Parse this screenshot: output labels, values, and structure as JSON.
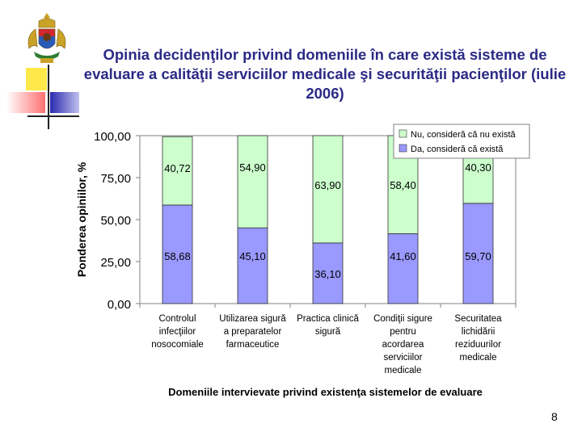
{
  "slide": {
    "title": "Opinia decidenţilor privind domeniile în care există sisteme de evaluare a calităţii serviciilor medicale şi securităţii pacienţilor (iulie 2006)",
    "page_number": "8"
  },
  "colors": {
    "series_nu": "#ccffcc",
    "series_da": "#9999ff",
    "title": "#2a2a86"
  },
  "chart_data": {
    "type": "bar",
    "stacked": true,
    "categories": [
      [
        "Controlul",
        "infecţiilor",
        "nosocomiale"
      ],
      [
        "Utilizarea sigură",
        "a preparatelor",
        "farmaceutice"
      ],
      [
        "Practica clinică",
        "sigură"
      ],
      [
        "Condiţii sigure",
        "pentru",
        "acordarea",
        "serviciilor",
        "medicale"
      ],
      [
        "Securitatea",
        "lichidării",
        "reziduurilor",
        "medicale"
      ]
    ],
    "series": [
      {
        "name": "Da, consideră că există",
        "values": [
          58.68,
          45.1,
          36.1,
          41.6,
          59.7
        ],
        "labels": [
          "58,68",
          "45,10",
          "36,10",
          "41,60",
          "59,70"
        ],
        "color": "#9999ff"
      },
      {
        "name": "Nu, consideră că nu există",
        "values": [
          40.72,
          54.9,
          63.9,
          58.4,
          40.3
        ],
        "labels": [
          "40,72",
          "54,90",
          "63,90",
          "58,40",
          "40,30"
        ],
        "color": "#ccffcc"
      }
    ],
    "legend_order": [
      "Nu, consideră că nu există",
      "Da, consideră că există"
    ],
    "xlabel": "Domeniile intervievate privind existenţa sistemelor de evaluare",
    "ylabel": "Ponderea opiniilor, %",
    "ylim": [
      0,
      100
    ],
    "yticks": [
      0,
      25,
      50,
      75,
      100
    ],
    "ytick_labels": [
      "0,00",
      "25,00",
      "50,00",
      "75,00",
      "100,00"
    ],
    "grid": false,
    "legend_position": "top-right"
  }
}
